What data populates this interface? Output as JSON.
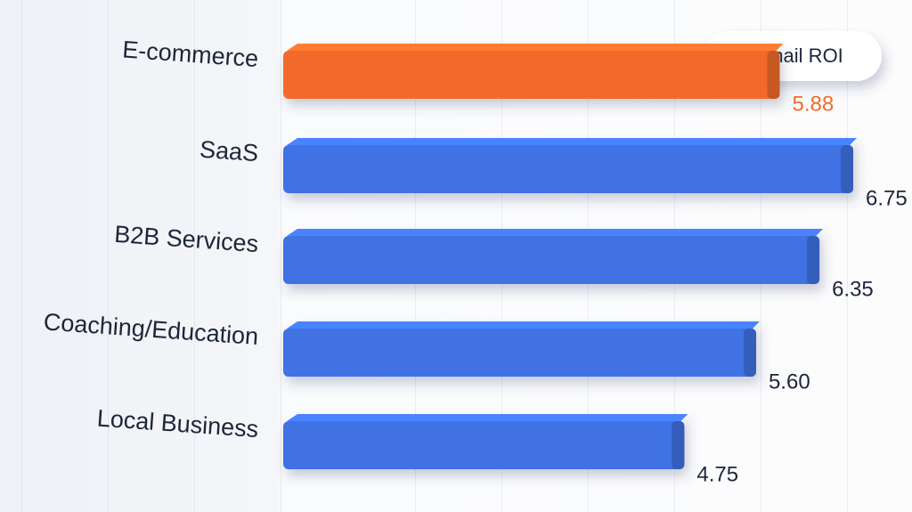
{
  "chart_data": {
    "type": "bar",
    "orientation": "horizontal",
    "categories": [
      "E-commerce",
      "SaaS",
      "B2B Services",
      "Coaching/Education",
      "Local Business"
    ],
    "series": [
      {
        "name": "email ROI",
        "color": "#f26b2a",
        "values": [
          5.88,
          6.75,
          6.35,
          5.6,
          4.75
        ],
        "value_labels": [
          "5.88",
          "6.75",
          "6.35",
          "5.60",
          "4.75"
        ]
      }
    ],
    "bar_colors": [
      "#f26b2a",
      "#3f72e4",
      "#3f72e4",
      "#3f72e4",
      "#3f72e4"
    ],
    "legend": "top-right"
  }
}
